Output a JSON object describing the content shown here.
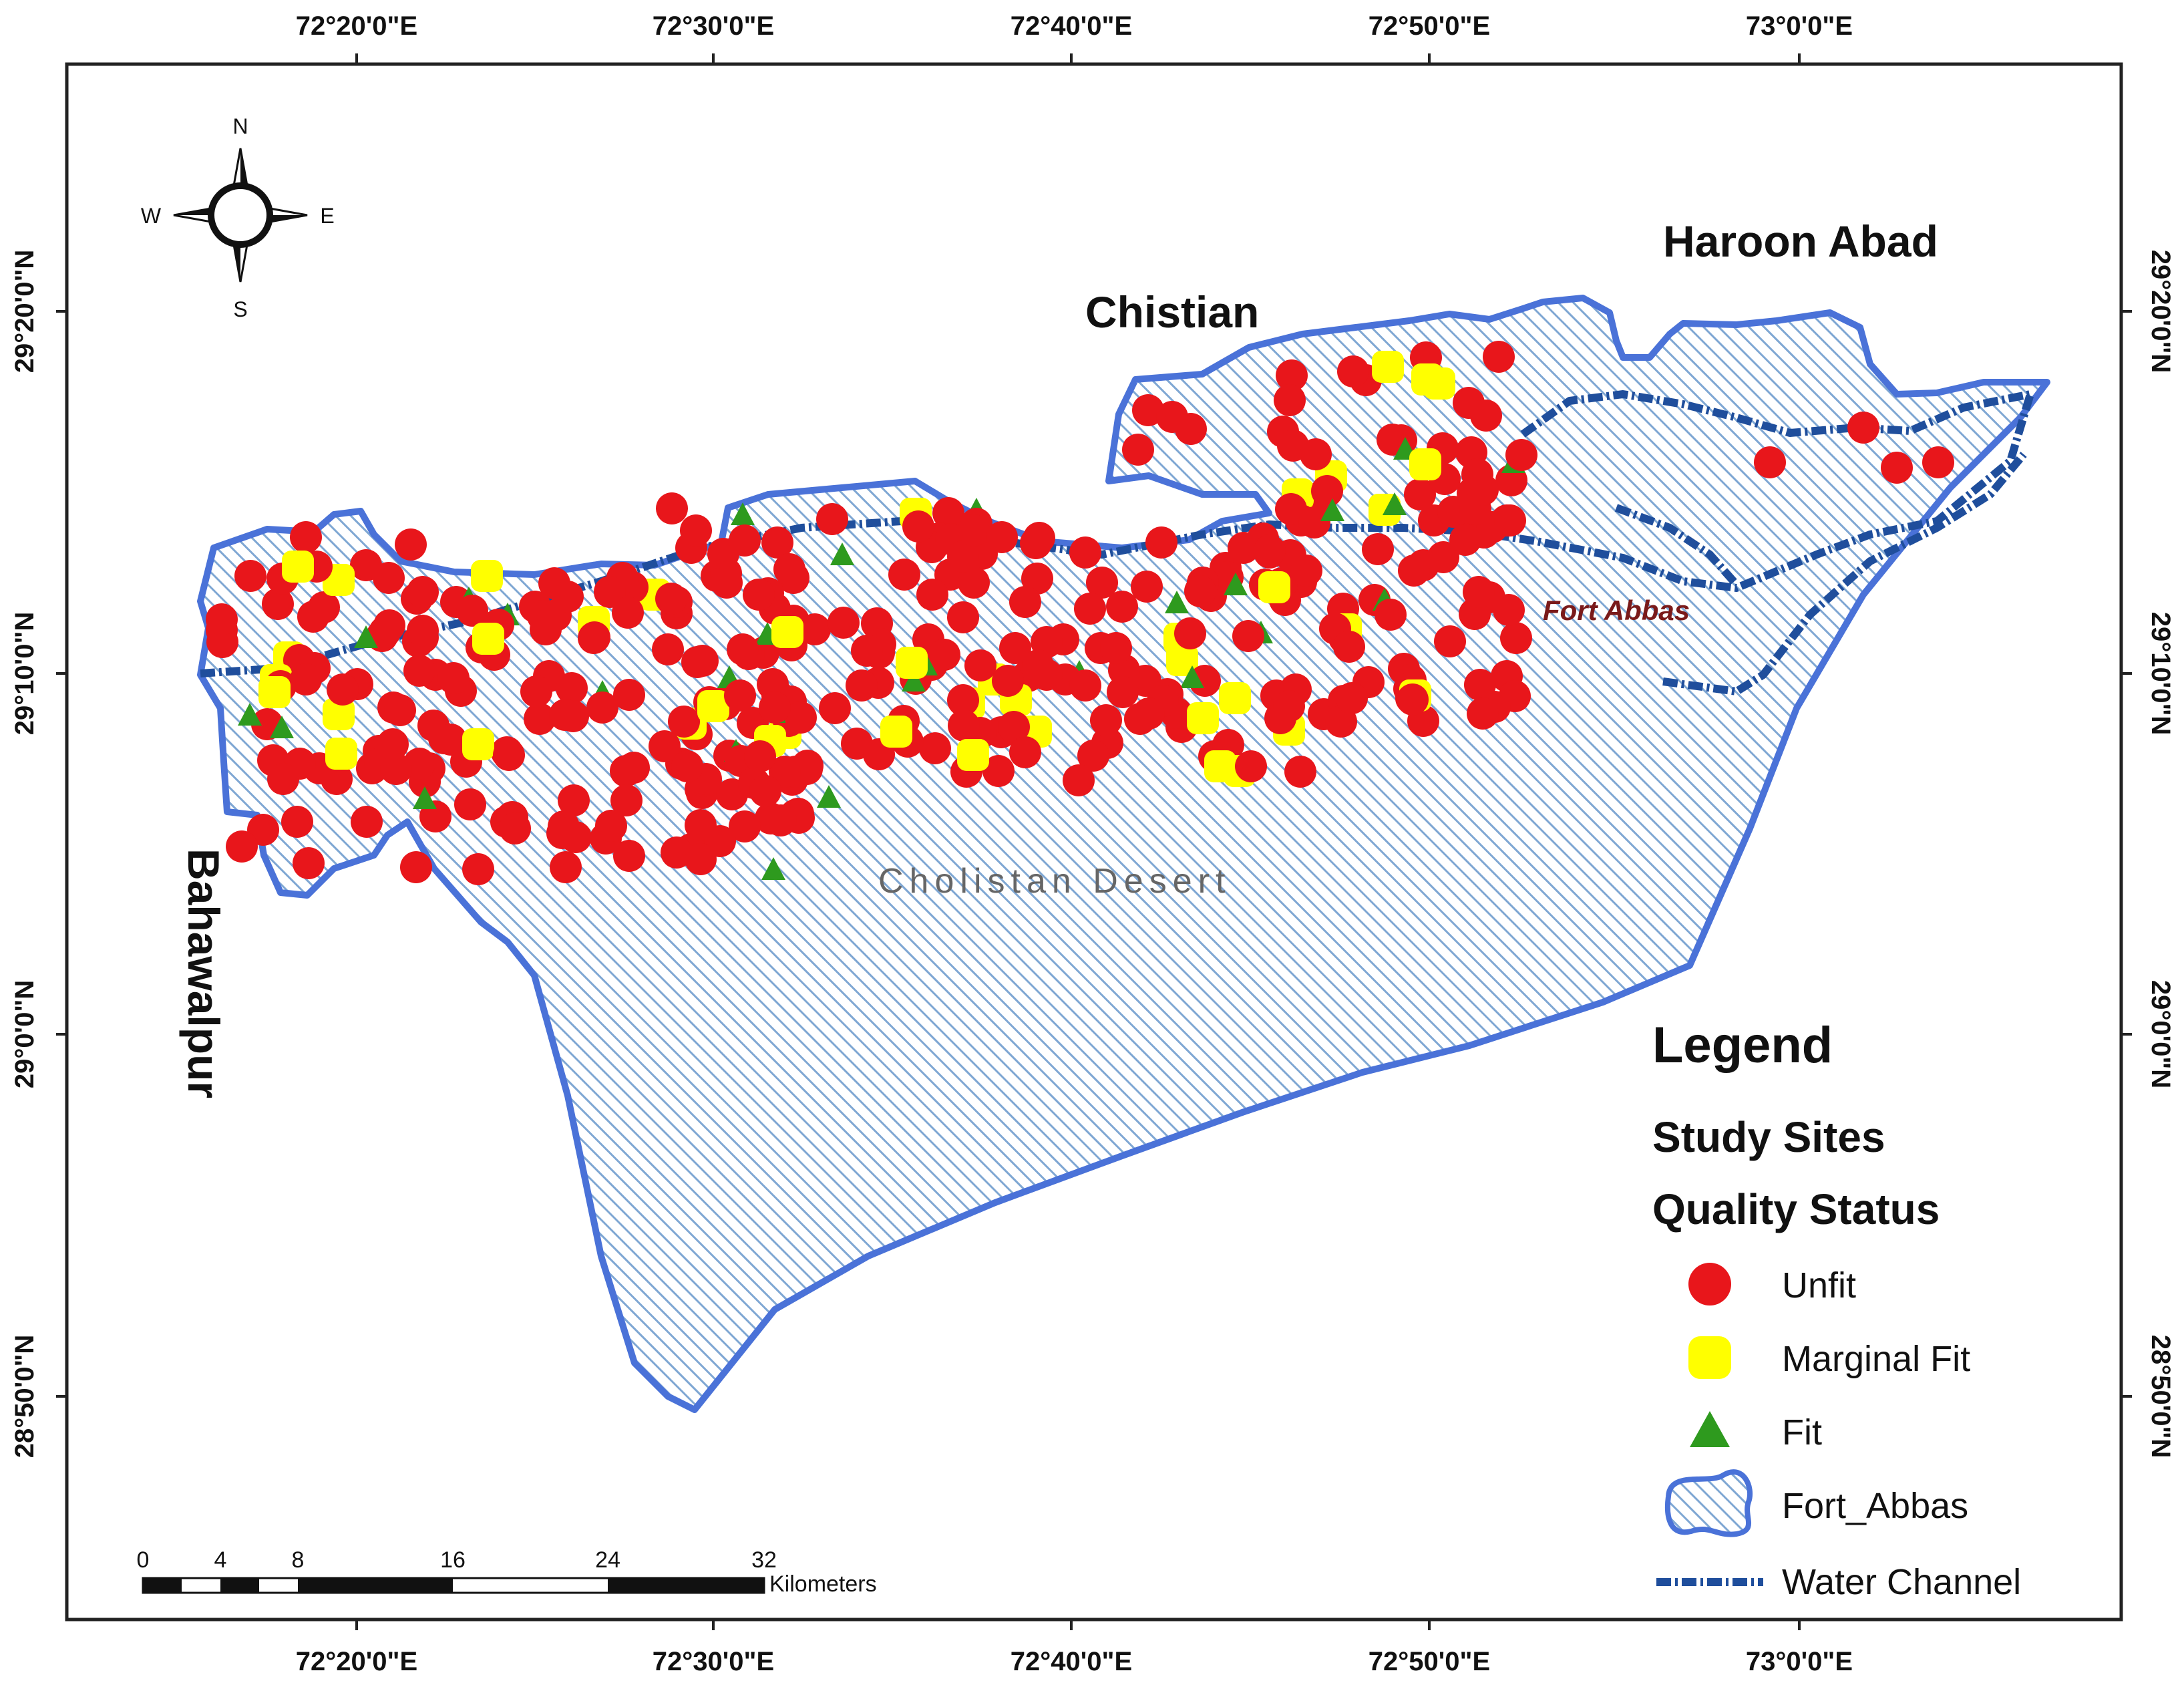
{
  "map": {
    "latitude_labels": [
      "29°20'0\"N",
      "29°10'0\"N",
      "29°0'0\"N",
      "28°50'0\"N"
    ],
    "longitude_labels": [
      "72°20'0\"E",
      "72°30'0\"E",
      "72°40'0\"E",
      "72°50'0\"E",
      "73°0'0\"E"
    ],
    "places": {
      "haroon_abad": "Haroon Abad",
      "chistian": "Chistian",
      "bahawalpur": "Bahawalpur",
      "fort_abbas": "Fort Abbas",
      "cholistan": "Cholistan Desert"
    },
    "compass": {
      "n": "N",
      "s": "S",
      "e": "E",
      "w": "W"
    },
    "scale_bar": {
      "ticks": [
        "0",
        "4",
        "8",
        "16",
        "24",
        "32"
      ],
      "unit": "Kilometers"
    },
    "colors": {
      "unfit": "#e8161b",
      "marginal_fit": "#ffff00",
      "fit": "#2e9a1e",
      "boundary": "#4a72d8",
      "hatch": "#7fa7d3",
      "water_channel": "#1f4e9c",
      "fort_abbas_label": "#7a1a1a"
    }
  },
  "legend": {
    "title": "Legend",
    "subtitle1": "Study Sites",
    "subtitle2": "Quality Status",
    "items": {
      "unfit": "Unfit",
      "marginal_fit": "Marginal Fit",
      "fit": "Fit",
      "fort_abbas": "Fort_Abbas",
      "water_channel": "Water Channel"
    }
  }
}
